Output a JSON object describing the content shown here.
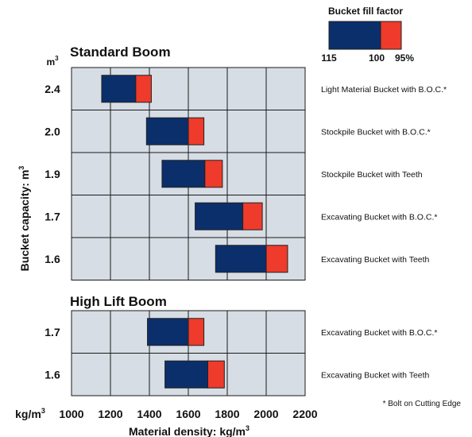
{
  "chart_data": {
    "type": "bar",
    "orientation": "horizontal",
    "stacked": true,
    "xlabel": "Material density: kg/m",
    "xlabel_sup": "3",
    "ylabel": "Bucket capacity: m",
    "ylabel_sup": "3",
    "x_unit": "kg/m",
    "x_unit_sup": "3",
    "y_unit": "m",
    "y_unit_sup": "3",
    "xlim": [
      1000,
      2200
    ],
    "x_ticks": [
      1000,
      1200,
      1400,
      1600,
      1800,
      2000,
      2200
    ],
    "x_tick_labels": [
      "1000",
      "1200",
      "1400",
      "1600",
      "1800",
      "2000",
      "2200"
    ],
    "grid": true,
    "fill_factor_legend": {
      "title": "Bucket fill factor",
      "labels": [
        "115",
        "100",
        "95%"
      ],
      "placement": "top-right",
      "colors": [
        "#0b2f6b",
        "#ee3b2b"
      ]
    },
    "footnote": "* Bolt on Cutting Edge",
    "panels": [
      {
        "title": "Standard Boom",
        "rows": [
          {
            "capacity": "2.4",
            "bucket": "Light Material Bucket with B.O.C.*",
            "density_115": 1155,
            "density_100": 1330,
            "density_95": 1410
          },
          {
            "capacity": "2.0",
            "bucket": "Stockpile Bucket with B.O.C.*",
            "density_115": 1385,
            "density_100": 1600,
            "density_95": 1680
          },
          {
            "capacity": "1.9",
            "bucket": "Stockpile Bucket with Teeth",
            "density_115": 1465,
            "density_100": 1685,
            "density_95": 1775
          },
          {
            "capacity": "1.7",
            "bucket": "Excavating Bucket with B.O.C.*",
            "density_115": 1635,
            "density_100": 1880,
            "density_95": 1980
          },
          {
            "capacity": "1.6",
            "bucket": "Excavating Bucket with Teeth",
            "density_115": 1740,
            "density_100": 2000,
            "density_95": 2110
          }
        ]
      },
      {
        "title": "High Lift Boom",
        "rows": [
          {
            "capacity": "1.7",
            "bucket": "Excavating Bucket with B.O.C.*",
            "density_115": 1390,
            "density_100": 1600,
            "density_95": 1680
          },
          {
            "capacity": "1.6",
            "bucket": "Excavating Bucket with Teeth",
            "density_115": 1480,
            "density_100": 1700,
            "density_95": 1785
          }
        ]
      }
    ]
  },
  "colors": {
    "bar_main": "#0b2f6b",
    "bar_tip": "#ee3b2b",
    "panel_bg": "#d7dde4",
    "grid": "#1a1a1a",
    "text": "#111111"
  }
}
